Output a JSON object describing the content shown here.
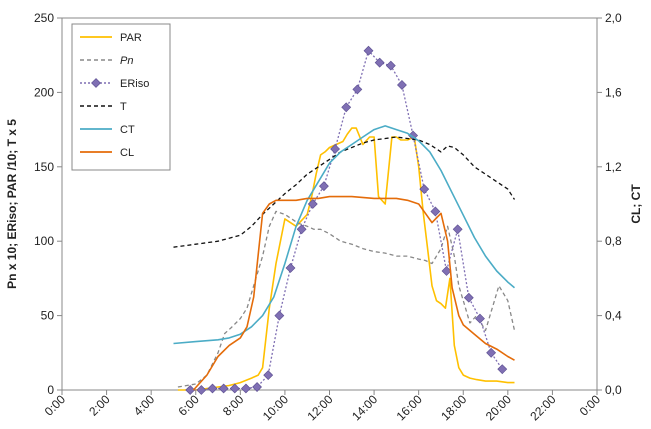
{
  "chart_data": {
    "type": "line",
    "title": "",
    "xlabel": "",
    "ylabel_left": "Pn x 10; ERiso; PAR /10; T x 5",
    "ylabel_right": "CL; CT",
    "x_ticks": [
      "0:00",
      "2:00",
      "4:00",
      "6:00",
      "8:00",
      "10:00",
      "12:00",
      "14:00",
      "16:00",
      "18:00",
      "20:00",
      "22:00",
      "0:00"
    ],
    "y_left_ticks": [
      "0",
      "50",
      "100",
      "150",
      "200",
      "250"
    ],
    "y_right_ticks": [
      "0,0",
      "0,4",
      "0,8",
      "1,2",
      "1,6",
      "2,0"
    ],
    "xlim_hours": [
      0,
      24
    ],
    "ylim_left": [
      0,
      250
    ],
    "ylim_right": [
      0,
      2.0
    ],
    "grid": false,
    "legend_position": "top-left",
    "series": [
      {
        "name": "PAR",
        "color": "#ffc000",
        "style": "solid",
        "axis": "left",
        "x": [
          5.2,
          6.0,
          6.5,
          7.0,
          7.5,
          8.0,
          8.5,
          8.8,
          9.0,
          9.3,
          9.6,
          10.0,
          10.5,
          11.0,
          11.2,
          11.4,
          11.6,
          11.8,
          12.0,
          12.3,
          12.6,
          12.8,
          13.0,
          13.2,
          13.5,
          13.8,
          14.0,
          14.2,
          14.5,
          14.8,
          15.0,
          15.2,
          15.5,
          15.8,
          16.0,
          16.2,
          16.4,
          16.6,
          16.8,
          17.0,
          17.2,
          17.4,
          17.6,
          17.8,
          18.0,
          18.3,
          18.6,
          19.0,
          19.5,
          20.0,
          20.3
        ],
        "y": [
          0,
          0,
          1,
          2,
          3,
          5,
          8,
          10,
          15,
          55,
          85,
          115,
          110,
          118,
          130,
          145,
          158,
          160,
          163,
          165,
          167,
          172,
          176,
          176,
          165,
          170,
          170,
          130,
          125,
          170,
          170,
          168,
          168,
          170,
          150,
          120,
          95,
          70,
          60,
          58,
          55,
          75,
          30,
          15,
          10,
          8,
          7,
          6,
          6,
          5,
          5
        ]
      },
      {
        "name": "Pn",
        "color": "#888888",
        "style": "dashed",
        "axis": "left",
        "x": [
          5.2,
          5.6,
          6.0,
          6.5,
          7.0,
          7.3,
          7.6,
          8.0,
          8.3,
          8.6,
          9.0,
          9.3,
          9.6,
          10.0,
          10.3,
          10.6,
          11.0,
          11.3,
          11.6,
          12.0,
          12.5,
          13.0,
          13.5,
          14.0,
          14.5,
          15.0,
          15.5,
          16.0,
          16.3,
          16.6,
          17.0,
          17.3,
          17.6,
          17.8,
          18.0,
          18.3,
          18.6,
          19.0,
          19.3,
          19.6,
          20.0,
          20.3
        ],
        "y": [
          2,
          3,
          4,
          10,
          25,
          38,
          42,
          48,
          55,
          70,
          90,
          110,
          120,
          118,
          115,
          112,
          110,
          108,
          108,
          105,
          100,
          98,
          95,
          93,
          92,
          90,
          90,
          88,
          87,
          85,
          95,
          110,
          90,
          70,
          60,
          45,
          50,
          40,
          55,
          70,
          60,
          40
        ]
      },
      {
        "name": "ERiso",
        "color": "#7f6fb3",
        "style": "dotted-markers",
        "axis": "left",
        "x": [
          5.75,
          6.25,
          6.75,
          7.25,
          7.75,
          8.25,
          8.75,
          9.25,
          9.75,
          10.25,
          10.75,
          11.25,
          11.75,
          12.25,
          12.75,
          13.25,
          13.75,
          14.25,
          14.75,
          15.25,
          15.75,
          16.25,
          16.75,
          17.25,
          17.75,
          18.25,
          18.75,
          19.25,
          19.75
        ],
        "y": [
          0,
          0,
          1,
          1,
          1,
          1,
          2,
          10,
          50,
          82,
          108,
          125,
          137,
          162,
          190,
          202,
          228,
          220,
          218,
          205,
          171,
          135,
          120,
          80,
          108,
          62,
          48,
          25,
          14
        ]
      },
      {
        "name": "T",
        "color": "#111111",
        "style": "dashed",
        "axis": "left",
        "x": [
          5.0,
          6.0,
          7.0,
          8.0,
          8.5,
          9.0,
          9.5,
          10.0,
          10.5,
          11.0,
          11.5,
          12.0,
          12.5,
          13.0,
          13.5,
          14.0,
          14.5,
          15.0,
          15.5,
          16.0,
          16.5,
          17.0,
          17.3,
          17.6,
          18.0,
          18.5,
          19.0,
          19.5,
          20.0,
          20.3
        ],
        "y": [
          96,
          98,
          100,
          104,
          110,
          118,
          125,
          132,
          138,
          145,
          150,
          155,
          160,
          163,
          166,
          168,
          169,
          170,
          169,
          168,
          165,
          160,
          164,
          163,
          158,
          150,
          145,
          140,
          135,
          128
        ]
      },
      {
        "name": "CT",
        "color": "#4bacc6",
        "style": "solid",
        "axis": "right",
        "x": [
          5.0,
          6.0,
          7.0,
          7.5,
          8.0,
          8.5,
          9.0,
          9.5,
          10.0,
          10.5,
          11.0,
          11.5,
          12.0,
          12.5,
          13.0,
          13.5,
          14.0,
          14.5,
          15.0,
          15.5,
          16.0,
          16.5,
          17.0,
          17.5,
          18.0,
          18.5,
          19.0,
          19.5,
          20.0,
          20.3
        ],
        "y": [
          0.25,
          0.26,
          0.27,
          0.28,
          0.3,
          0.34,
          0.4,
          0.5,
          0.68,
          0.88,
          1.02,
          1.12,
          1.22,
          1.28,
          1.32,
          1.36,
          1.4,
          1.42,
          1.4,
          1.38,
          1.34,
          1.28,
          1.18,
          1.06,
          0.94,
          0.82,
          0.72,
          0.64,
          0.58,
          0.55
        ]
      },
      {
        "name": "CL",
        "color": "#e46c0a",
        "style": "solid",
        "axis": "right",
        "x": [
          5.9,
          6.5,
          7.0,
          7.5,
          8.0,
          8.3,
          8.6,
          9.0,
          9.3,
          9.6,
          10.0,
          10.5,
          11.0,
          11.5,
          12.0,
          13.0,
          14.0,
          15.0,
          15.5,
          16.0,
          16.3,
          16.6,
          17.0,
          17.3,
          17.5,
          17.8,
          18.0,
          18.5,
          19.0,
          19.5,
          20.0,
          20.3
        ],
        "y": [
          0.0,
          0.08,
          0.18,
          0.24,
          0.28,
          0.34,
          0.5,
          0.95,
          1.0,
          1.02,
          1.02,
          1.02,
          1.03,
          1.03,
          1.04,
          1.04,
          1.03,
          1.03,
          1.02,
          1.0,
          0.95,
          0.9,
          0.95,
          0.8,
          0.55,
          0.4,
          0.35,
          0.3,
          0.25,
          0.22,
          0.18,
          0.16
        ]
      }
    ]
  },
  "legend": {
    "items": [
      {
        "label": "PAR"
      },
      {
        "label": "Pn"
      },
      {
        "label": "ERiso"
      },
      {
        "label": "T"
      },
      {
        "label": "CT"
      },
      {
        "label": "CL"
      }
    ]
  }
}
